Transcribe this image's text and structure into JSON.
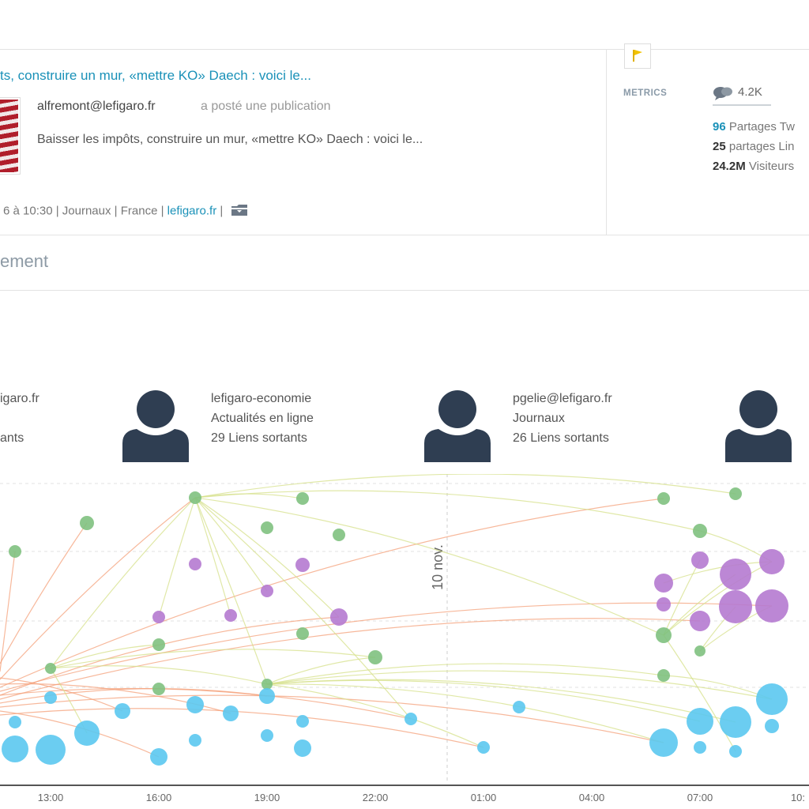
{
  "post": {
    "title": "ts, construire un mur, «mettre KO» Daech : voici le...",
    "author": "alfremont@lefigaro.fr",
    "action": "a posté une publication",
    "excerpt": "Baisser les impôts, construire un mur, «mettre KO» Daech : voici le...",
    "meta_prefix": "6 à 10:30 | Journaux | France | ",
    "meta_link": "lefigaro.fr",
    "meta_suffix": " | "
  },
  "metrics": {
    "label": "METRICS",
    "comments": "4.2K",
    "twitter_count": "96",
    "twitter_label": " Partages Tw",
    "linkedin_count": "25",
    "linkedin_label": " partages Lin",
    "visitors_count": "24.2M",
    "visitors_label": " Visiteurs"
  },
  "section": {
    "title": "ement"
  },
  "profiles": [
    {
      "name": "igaro.fr",
      "line2": "",
      "line3": "ants"
    },
    {
      "name": "lefigaro-economie",
      "line2": "Actualités en ligne",
      "line3": "29 Liens sortants"
    },
    {
      "name": "pgelie@lefigaro.fr",
      "line2": "Journaux",
      "line3": "26 Liens sortants"
    }
  ],
  "timeline": {
    "date_marker": "10 nov.",
    "ticks": [
      "13:00",
      "16:00",
      "19:00",
      "22:00",
      "01:00",
      "04:00",
      "07:00",
      "10:"
    ]
  },
  "colors": {
    "blue_node": "#5bc8f0",
    "green_node": "#7fc17f",
    "purple_node": "#b57ad0",
    "link_blue": "#1a91b8",
    "avatar": "#2f3e52",
    "flag": "#f2c200",
    "edge_orange": "#f4a07a",
    "edge_yellow": "#d6e08a"
  },
  "icons": {
    "flag": "flag-icon",
    "comments": "comment-bubbles-icon",
    "folder": "folder-icon",
    "user": "user-icon"
  }
}
